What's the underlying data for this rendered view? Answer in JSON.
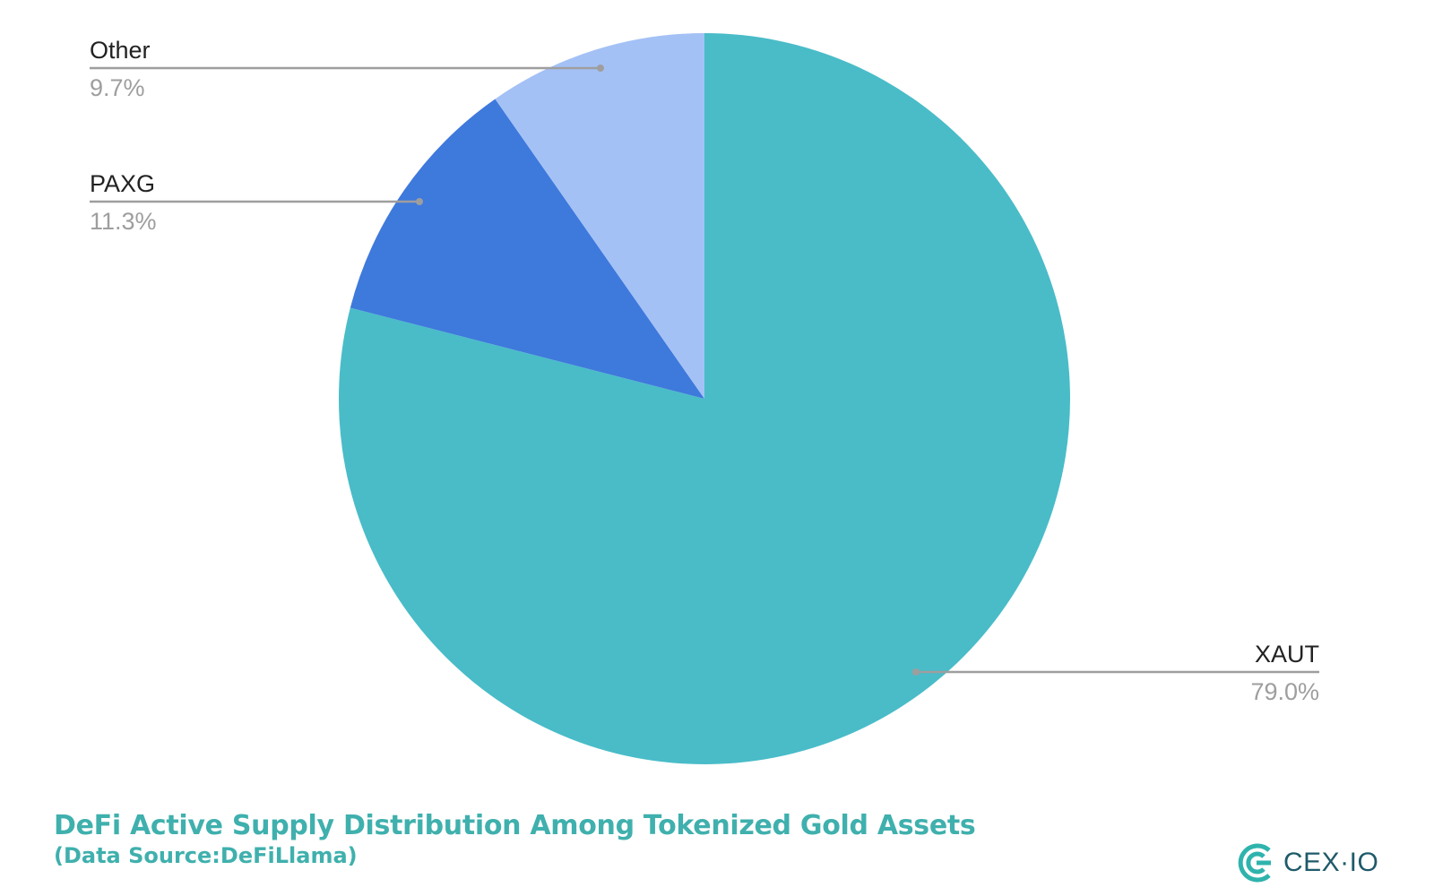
{
  "chart_data": {
    "type": "pie",
    "start_angle_deg": 0,
    "direction": "clockwise",
    "slices": [
      {
        "label": "XAUT",
        "value": 79.0,
        "value_label": "79.0%",
        "color": "#49bcc8"
      },
      {
        "label": "PAXG",
        "value": 11.3,
        "value_label": "11.3%",
        "color": "#3e79dc"
      },
      {
        "label": "Other",
        "value": 9.7,
        "value_label": "9.7%",
        "color": "#a4c1f6"
      }
    ],
    "leader_color": "#9e9e9e"
  },
  "caption": {
    "title": "DeFi Active Supply Distribution Among Tokenized Gold Assets",
    "subtitle": "(Data Source:DeFiLlama)",
    "color": "#3fb0ad"
  },
  "brand": {
    "text": "CEX·IO",
    "color": "#1f5a6a",
    "logo_color": "#2fb3ad"
  }
}
